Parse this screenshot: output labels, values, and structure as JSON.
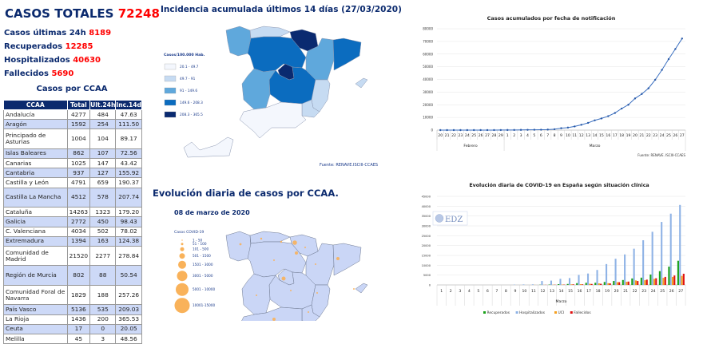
{
  "summary": {
    "title_label": "CASOS TOTALES",
    "total": "72248",
    "stats": [
      {
        "label": "Casos últimas 24h",
        "value": "8189"
      },
      {
        "label": "Recuperados",
        "value": "12285"
      },
      {
        "label": "Hospitalizados",
        "value": "40630"
      },
      {
        "label": "Fallecidos",
        "value": "5690"
      }
    ]
  },
  "table": {
    "title": "Casos por CCAA",
    "headers": [
      "CCAA",
      "Total",
      "Ult.24h",
      "Inc.14d"
    ],
    "rows": [
      [
        "Andalucía",
        "4277",
        "484",
        "47.63"
      ],
      [
        "Aragón",
        "1592",
        "254",
        "111.50"
      ],
      [
        "Principado de Asturias",
        "1004",
        "104",
        "89.17"
      ],
      [
        "Islas Baleares",
        "862",
        "107",
        "72.56"
      ],
      [
        "Canarias",
        "1025",
        "147",
        "43.42"
      ],
      [
        "Cantabria",
        "937",
        "127",
        "155.92"
      ],
      [
        "Castilla y León",
        "4791",
        "659",
        "190.37"
      ],
      [
        "Castilla La Mancha",
        "4512",
        "578",
        "207.74"
      ],
      [
        "Cataluña",
        "14263",
        "1323",
        "179.20"
      ],
      [
        "Galicia",
        "2772",
        "450",
        "98.43"
      ],
      [
        "C. Valenciana",
        "4034",
        "502",
        "78.02"
      ],
      [
        "Extremadura",
        "1394",
        "163",
        "124.38"
      ],
      [
        "Comunidad de Madrid",
        "21520",
        "2277",
        "278.84"
      ],
      [
        "Región de Murcia",
        "802",
        "88",
        "50.54"
      ],
      [
        "Comunidad Foral de Navarra",
        "1829",
        "188",
        "257.26"
      ],
      [
        "País Vasco",
        "5136",
        "535",
        "209.03"
      ],
      [
        "La Rioja",
        "1436",
        "200",
        "365.53"
      ],
      [
        "Ceuta",
        "17",
        "0",
        "20.05"
      ],
      [
        "Melilla",
        "45",
        "3",
        "48.56"
      ]
    ]
  },
  "map1": {
    "title": "Incidencia acumulada últimos 14 días (27/03/2020)",
    "legend_title": "Casos/100.000 Hab.",
    "legend": [
      {
        "label": "20.1 - 49.7",
        "color": "#f4f7fd"
      },
      {
        "label": "49.7 - 91",
        "color": "#c6dbf2"
      },
      {
        "label": "91 - 149.6",
        "color": "#5fa8dc"
      },
      {
        "label": "149.6 - 208.3",
        "color": "#0b6cbf"
      },
      {
        "label": "208.3 - 365.5",
        "color": "#0a2a70"
      }
    ],
    "source": "Fuente: RENAVE.ISCIII-CCAES"
  },
  "map2": {
    "title": "Evolución diaria de casos por CCAA.",
    "date": "08 de marzo de 2020",
    "legend_title": "Casos COVID-19",
    "legend": [
      "1 - 50",
      "51 - 100",
      "101 - 500",
      "501 - 1500",
      "1501 - 3000",
      "3001 - 5000",
      "5001 - 10000",
      "10001-15000"
    ]
  },
  "chart_data": [
    {
      "type": "line",
      "title": "Casos acumulados por fecha de notificación",
      "source": "Fuente: RENAVE. ISCIII-CCAES",
      "x": [
        "20",
        "21",
        "22",
        "23",
        "24",
        "25",
        "26",
        "27",
        "28",
        "29",
        "1",
        "2",
        "3",
        "4",
        "5",
        "6",
        "7",
        "8",
        "9",
        "10",
        "11",
        "12",
        "13",
        "14",
        "15",
        "16",
        "17",
        "18",
        "19",
        "20",
        "21",
        "22",
        "23",
        "24",
        "25",
        "26",
        "27"
      ],
      "groups": [
        {
          "label": "Febrero",
          "count": 10
        },
        {
          "label": "Marzo",
          "count": 27
        }
      ],
      "values": [
        0,
        0,
        0,
        0,
        0,
        0,
        10,
        20,
        30,
        50,
        80,
        100,
        150,
        200,
        250,
        300,
        400,
        700,
        1500,
        2000,
        2900,
        4200,
        5700,
        7700,
        9200,
        11000,
        13500,
        17000,
        20000,
        25000,
        28500,
        33000,
        39700,
        47500,
        56000,
        64000,
        72248
      ],
      "ylim": [
        0,
        80000
      ],
      "yticks": [
        0,
        10000,
        20000,
        30000,
        40000,
        50000,
        60000,
        70000,
        80000
      ],
      "color": "#3a6fc0"
    },
    {
      "type": "bar",
      "title": "Evolución diaria de COVID-19 en España según situación clínica",
      "xlabel": "Marzo",
      "watermark": "EDZ",
      "categories": [
        "1",
        "2",
        "3",
        "4",
        "5",
        "6",
        "7",
        "8",
        "9",
        "10",
        "11",
        "12",
        "13",
        "14",
        "15",
        "16",
        "17",
        "18",
        "19",
        "20",
        "21",
        "22",
        "23",
        "24",
        "25",
        "26",
        "27"
      ],
      "ylim": [
        0,
        45000
      ],
      "yticks": [
        0,
        5000,
        10000,
        15000,
        20000,
        25000,
        30000,
        35000,
        40000,
        45000
      ],
      "series": [
        {
          "name": "Recuperados",
          "color": "#1aa11a",
          "values": [
            0,
            0,
            0,
            0,
            0,
            0,
            0,
            0,
            0,
            0,
            0,
            100,
            200,
            400,
            500,
            900,
            1100,
            1100,
            1500,
            2000,
            2500,
            3300,
            3700,
            5300,
            7000,
            9300,
            12285
          ]
        },
        {
          "name": "Hospitalizados",
          "color": "#8fb3e6",
          "values": [
            0,
            0,
            0,
            0,
            0,
            0,
            0,
            0,
            150,
            250,
            300,
            2000,
            2200,
            3100,
            3500,
            5100,
            5800,
            7600,
            10600,
            13300,
            15500,
            18400,
            22700,
            27000,
            32000,
            36200,
            40630
          ]
        },
        {
          "name": "UCI",
          "color": "#f5a020",
          "values": [
            0,
            0,
            0,
            0,
            0,
            0,
            0,
            0,
            0,
            0,
            50,
            50,
            100,
            200,
            300,
            400,
            600,
            800,
            900,
            1400,
            1600,
            2300,
            2400,
            3100,
            3600,
            4100,
            4600
          ]
        },
        {
          "name": "Fallecidos",
          "color": "#e01010",
          "values": [
            0,
            0,
            0,
            0,
            0,
            0,
            0,
            0,
            0,
            0,
            0,
            50,
            100,
            150,
            300,
            300,
            500,
            600,
            800,
            1400,
            1700,
            2000,
            2700,
            3400,
            4100,
            4800,
            5690
          ]
        }
      ]
    }
  ]
}
